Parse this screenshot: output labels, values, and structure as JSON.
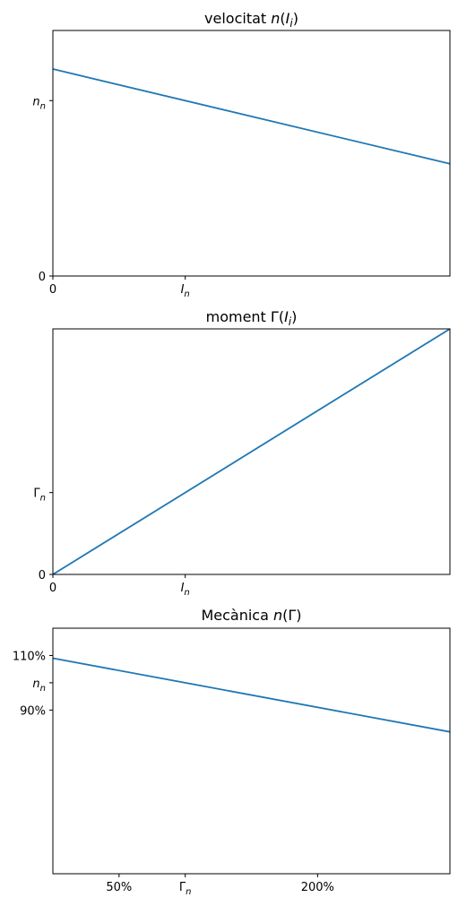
{
  "chart_data": [
    {
      "type": "line",
      "title": "velocitat n(I_i)",
      "title_parts": [
        "velocitat ",
        "n",
        "(",
        "I",
        "i",
        ")"
      ],
      "xlim": [
        0,
        3
      ],
      "ylim": [
        0,
        1.4
      ],
      "x_ticks": [
        {
          "value": 0,
          "label": "0",
          "subscript": ""
        },
        {
          "value": 1,
          "label": "I",
          "subscript": "n"
        }
      ],
      "y_ticks": [
        {
          "value": 0,
          "label": "0",
          "subscript": ""
        },
        {
          "value": 1,
          "label": "n",
          "subscript": "n"
        }
      ],
      "series": [
        {
          "color": "#1f77b4",
          "x": [
            0,
            3
          ],
          "y": [
            1.18,
            0.64
          ]
        }
      ]
    },
    {
      "type": "line",
      "title": "moment Γ(I_i)",
      "title_parts": [
        "moment Γ(",
        "I",
        "i",
        ")"
      ],
      "xlim": [
        0,
        3
      ],
      "ylim": [
        0,
        3
      ],
      "x_ticks": [
        {
          "value": 0,
          "label": "0",
          "subscript": ""
        },
        {
          "value": 1,
          "label": "I",
          "subscript": "n"
        }
      ],
      "y_ticks": [
        {
          "value": 0,
          "label": "0",
          "subscript": ""
        },
        {
          "value": 1,
          "label": "Γ",
          "subscript": "n"
        }
      ],
      "series": [
        {
          "color": "#1f77b4",
          "x": [
            0,
            3
          ],
          "y": [
            0,
            3
          ]
        }
      ]
    },
    {
      "type": "line",
      "title": "Mecànica n(Γ)",
      "title_parts": [
        "Mecànica ",
        "n",
        "(Γ)"
      ],
      "xlim": [
        0,
        3
      ],
      "ylim": [
        0.3,
        1.2
      ],
      "x_ticks": [
        {
          "value": 0.5,
          "label": "50%",
          "subscript": ""
        },
        {
          "value": 1,
          "label": "Γ",
          "subscript": "n"
        },
        {
          "value": 2,
          "label": "200%",
          "subscript": ""
        }
      ],
      "y_ticks": [
        {
          "value": 1.1,
          "label": "110%",
          "subscript": ""
        },
        {
          "value": 1,
          "label": "n",
          "subscript": "n"
        },
        {
          "value": 0.9,
          "label": "90%",
          "subscript": ""
        }
      ],
      "series": [
        {
          "color": "#1f77b4",
          "x": [
            0,
            3
          ],
          "y": [
            1.09,
            0.82
          ]
        }
      ]
    }
  ]
}
